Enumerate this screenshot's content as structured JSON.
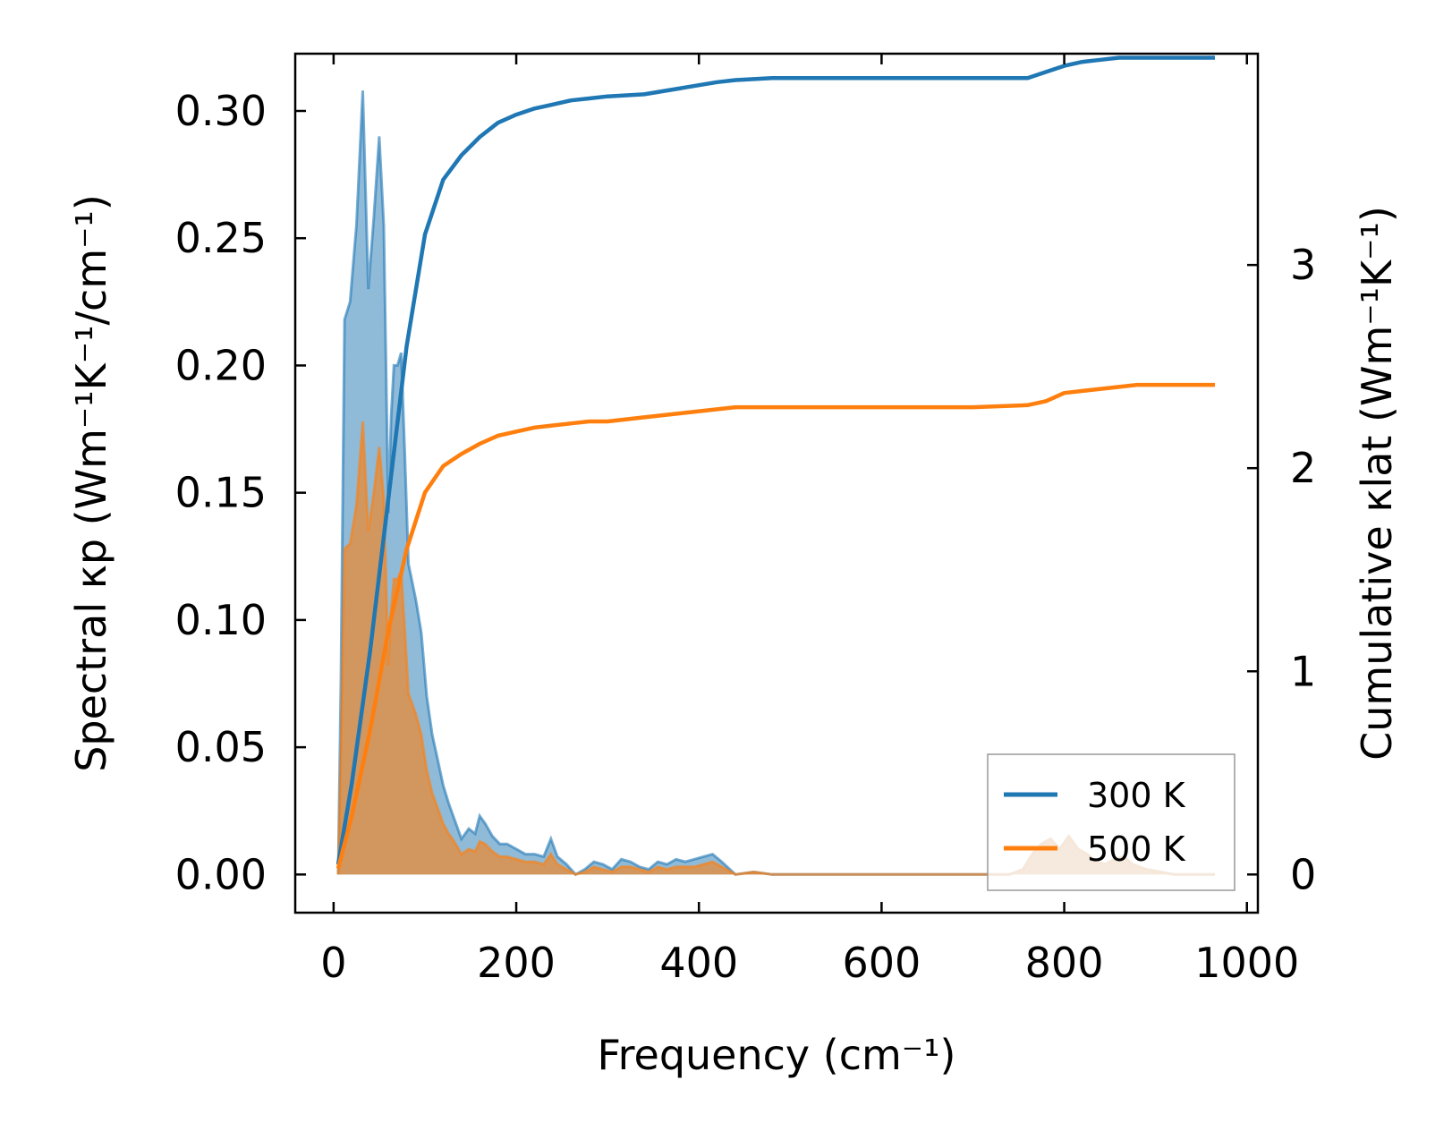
{
  "chart_data": {
    "type": "line",
    "xlabel": "Frequency (cm⁻¹)",
    "ylabel_left": "Spectral κp (Wm⁻¹K⁻¹/cm⁻¹)",
    "ylabel_right": "Cumulative κlat (Wm⁻¹K⁻¹)",
    "xlim": [
      -42,
      1012
    ],
    "ylim_left": [
      -0.015,
      0.3225
    ],
    "ylim_right": [
      -0.188,
      4.04
    ],
    "x_ticks": [
      0,
      200,
      400,
      600,
      800,
      1000
    ],
    "x_tick_labels": [
      "0",
      "200",
      "400",
      "600",
      "800",
      "1000"
    ],
    "y_left_ticks": [
      0.0,
      0.05,
      0.1,
      0.15,
      0.2,
      0.25,
      0.3
    ],
    "y_left_tick_labels": [
      "0.00",
      "0.05",
      "0.10",
      "0.15",
      "0.20",
      "0.25",
      "0.30"
    ],
    "y_right_ticks": [
      0,
      1,
      2,
      3
    ],
    "y_right_tick_labels": [
      "0",
      "1",
      "2",
      "3"
    ],
    "legend": {
      "position": "lower-right",
      "entries": [
        "300 K",
        "500 K"
      ]
    },
    "colors": {
      "300 K": "#1f77b4",
      "500 K": "#ff7f0e"
    },
    "spectral_series": [
      {
        "name": "300 K",
        "x": [
          5,
          8,
          12,
          18,
          25,
          32,
          38,
          44,
          50,
          55,
          60,
          63,
          66,
          70,
          74,
          78,
          82,
          86,
          90,
          96,
          102,
          108,
          114,
          120,
          126,
          132,
          140,
          148,
          155,
          160,
          166,
          174,
          182,
          190,
          200,
          210,
          220,
          230,
          238,
          245,
          255,
          265,
          275,
          285,
          295,
          305,
          315,
          325,
          335,
          345,
          355,
          365,
          375,
          385,
          395,
          405,
          415,
          425,
          440,
          460,
          480,
          500,
          520,
          740,
          755,
          765,
          775,
          785,
          795,
          805,
          815,
          825,
          835,
          845,
          855,
          865,
          875,
          890,
          905,
          920,
          940,
          965
        ],
        "values": [
          0.0,
          0.075,
          0.218,
          0.225,
          0.255,
          0.308,
          0.23,
          0.258,
          0.29,
          0.255,
          0.142,
          0.18,
          0.2,
          0.2,
          0.205,
          0.165,
          0.122,
          0.115,
          0.108,
          0.095,
          0.07,
          0.055,
          0.045,
          0.035,
          0.028,
          0.022,
          0.014,
          0.018,
          0.016,
          0.023,
          0.02,
          0.015,
          0.012,
          0.012,
          0.01,
          0.008,
          0.008,
          0.007,
          0.014,
          0.007,
          0.004,
          0.0,
          0.002,
          0.005,
          0.004,
          0.002,
          0.006,
          0.005,
          0.003,
          0.002,
          0.005,
          0.004,
          0.006,
          0.005,
          0.006,
          0.007,
          0.008,
          0.005,
          0.0,
          0.001,
          0.0,
          0.0,
          0.0,
          0.0,
          0.002,
          0.008,
          0.012,
          0.014,
          0.01,
          0.015,
          0.01,
          0.008,
          0.005,
          0.004,
          0.006,
          0.007,
          0.004,
          0.002,
          0.001,
          0.0,
          0.0,
          0.0
        ]
      },
      {
        "name": "500 K",
        "x": [
          5,
          8,
          12,
          18,
          25,
          32,
          38,
          44,
          50,
          55,
          60,
          63,
          66,
          70,
          74,
          78,
          82,
          86,
          90,
          96,
          102,
          108,
          114,
          120,
          126,
          132,
          140,
          148,
          155,
          160,
          166,
          174,
          182,
          190,
          200,
          210,
          220,
          230,
          238,
          245,
          255,
          265,
          275,
          285,
          295,
          305,
          315,
          325,
          335,
          345,
          355,
          365,
          375,
          385,
          395,
          405,
          415,
          425,
          440,
          460,
          480,
          500,
          520,
          740,
          755,
          765,
          775,
          785,
          795,
          805,
          815,
          825,
          835,
          845,
          855,
          865,
          875,
          890,
          905,
          920,
          940,
          965
        ],
        "values": [
          0.0,
          0.045,
          0.128,
          0.13,
          0.145,
          0.178,
          0.135,
          0.15,
          0.168,
          0.148,
          0.082,
          0.104,
          0.116,
          0.116,
          0.119,
          0.096,
          0.071,
          0.067,
          0.063,
          0.055,
          0.041,
          0.032,
          0.026,
          0.02,
          0.016,
          0.013,
          0.008,
          0.01,
          0.009,
          0.013,
          0.012,
          0.009,
          0.007,
          0.007,
          0.006,
          0.005,
          0.005,
          0.004,
          0.008,
          0.004,
          0.002,
          0.0,
          0.001,
          0.003,
          0.002,
          0.001,
          0.003,
          0.003,
          0.002,
          0.001,
          0.003,
          0.002,
          0.003,
          0.003,
          0.003,
          0.004,
          0.005,
          0.003,
          0.0,
          0.001,
          0.0,
          0.0,
          0.0,
          0.0,
          0.002,
          0.008,
          0.012,
          0.014,
          0.01,
          0.015,
          0.01,
          0.008,
          0.005,
          0.004,
          0.006,
          0.007,
          0.004,
          0.002,
          0.001,
          0.0,
          0.0,
          0.0
        ]
      }
    ],
    "cumulative_series": [
      {
        "name": "300 K",
        "x": [
          5,
          20,
          40,
          60,
          80,
          100,
          120,
          140,
          160,
          180,
          200,
          220,
          240,
          260,
          280,
          300,
          340,
          380,
          420,
          440,
          480,
          520,
          600,
          700,
          760,
          780,
          800,
          820,
          840,
          860,
          880,
          920,
          965
        ],
        "values": [
          0.05,
          0.45,
          1.1,
          1.85,
          2.6,
          3.15,
          3.42,
          3.54,
          3.63,
          3.7,
          3.74,
          3.77,
          3.79,
          3.81,
          3.82,
          3.83,
          3.84,
          3.87,
          3.9,
          3.91,
          3.92,
          3.92,
          3.92,
          3.92,
          3.92,
          3.95,
          3.98,
          4.0,
          4.01,
          4.02,
          4.02,
          4.02,
          4.02
        ]
      },
      {
        "name": "500 K",
        "x": [
          5,
          20,
          40,
          60,
          80,
          100,
          120,
          140,
          160,
          180,
          200,
          220,
          240,
          260,
          280,
          300,
          340,
          380,
          420,
          440,
          480,
          520,
          600,
          700,
          760,
          780,
          800,
          820,
          840,
          860,
          880,
          920,
          965
        ],
        "values": [
          0.03,
          0.29,
          0.71,
          1.2,
          1.6,
          1.88,
          2.01,
          2.07,
          2.12,
          2.16,
          2.18,
          2.2,
          2.21,
          2.22,
          2.23,
          2.23,
          2.25,
          2.27,
          2.29,
          2.3,
          2.3,
          2.3,
          2.3,
          2.3,
          2.31,
          2.33,
          2.37,
          2.38,
          2.39,
          2.4,
          2.41,
          2.41,
          2.41
        ]
      }
    ]
  }
}
